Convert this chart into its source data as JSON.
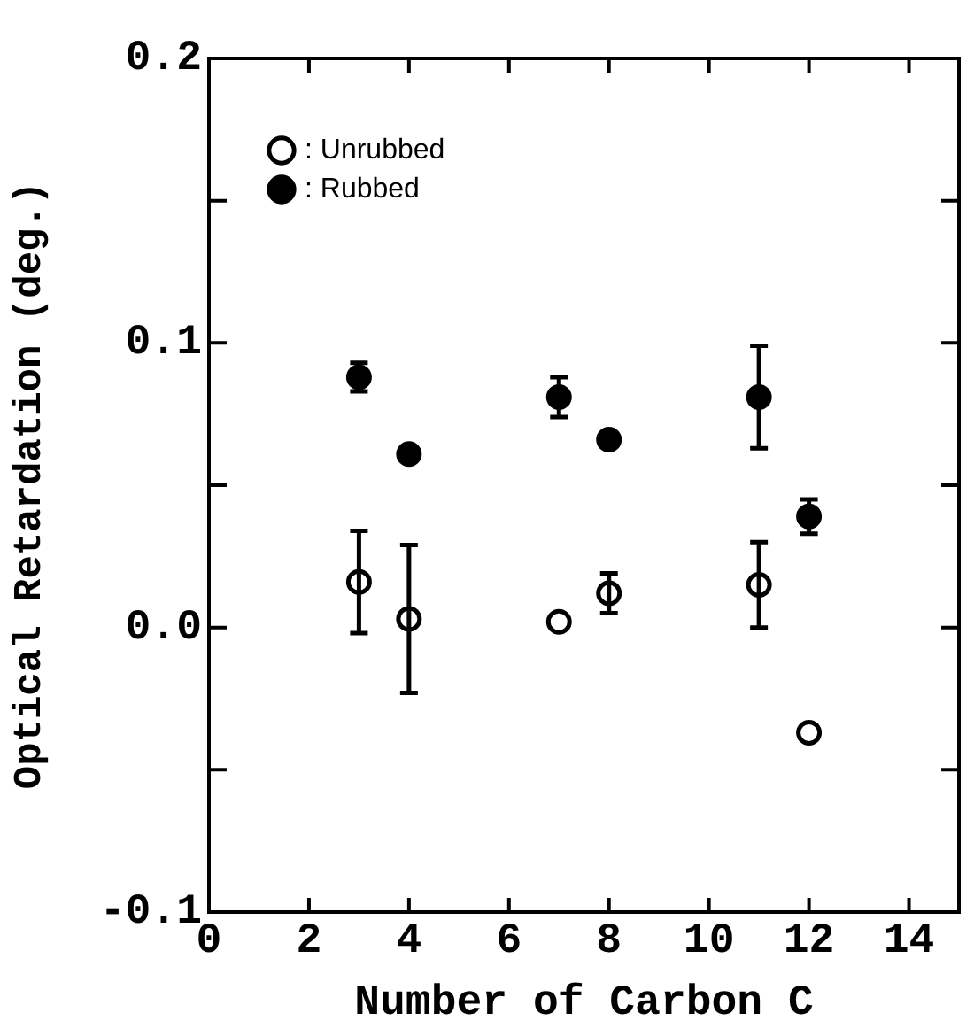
{
  "chart_data": {
    "type": "scatter",
    "xlabel": "Number of Carbon C",
    "ylabel": "Optical Retardation (deg.)",
    "xlim": [
      0,
      15
    ],
    "xticks": [
      0,
      2,
      4,
      6,
      8,
      10,
      12,
      14
    ],
    "ylim": [
      -0.1,
      0.2
    ],
    "yticks": [
      -0.1,
      {
        "value": -0.05,
        "label": null
      },
      {
        "value": 0,
        "label": "0.0"
      },
      {
        "value": 0.05,
        "label": null
      },
      0.1,
      {
        "value": 0.15,
        "label": null
      },
      0.2
    ],
    "legend": "top left",
    "marker": "circle",
    "grid": false,
    "series": [
      {
        "name": ": Unrubbed",
        "color": "#000000",
        "x": [
          3,
          4,
          7,
          8,
          11,
          12
        ],
        "values": [
          0.016,
          0.003,
          0.002,
          0.012,
          0.015,
          -0.037
        ],
        "errors": [
          0.018,
          0.026,
          null,
          0.007,
          0.015,
          null
        ]
      },
      {
        "name": ": Rubbed",
        "color": "#000000",
        "x": [
          3,
          4,
          7,
          8,
          11,
          12
        ],
        "values": [
          0.088,
          0.061,
          0.081,
          0.066,
          0.081,
          0.039
        ],
        "errors": [
          0.005,
          null,
          0.007,
          null,
          0.018,
          0.006
        ]
      }
    ]
  }
}
